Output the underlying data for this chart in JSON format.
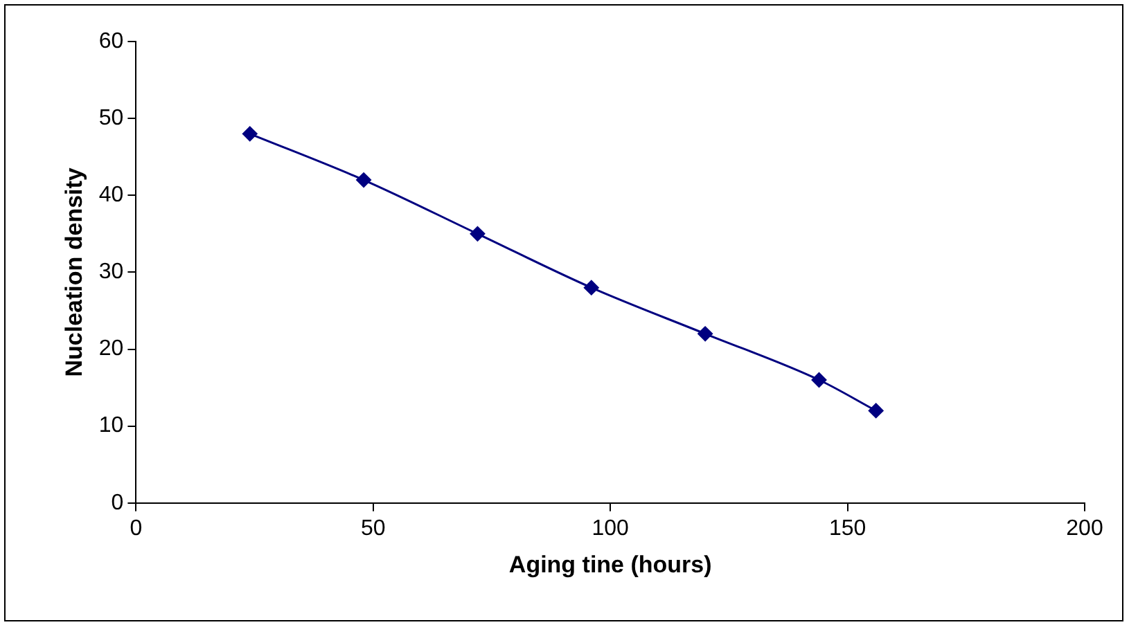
{
  "chart_data": {
    "type": "line",
    "xlabel": "Aging tine (hours)",
    "ylabel": "Nucleation density",
    "x": [
      24,
      48,
      72,
      96,
      120,
      144,
      156
    ],
    "series": [
      {
        "color": "#000080",
        "values": [
          48,
          42,
          35,
          28,
          22,
          16,
          12
        ]
      }
    ],
    "xlim": [
      0,
      200
    ],
    "xticks": [
      0,
      50,
      100,
      150,
      200
    ],
    "ylim": [
      0,
      60
    ],
    "yticks": [
      0,
      10,
      20,
      30,
      40,
      50,
      60
    ],
    "grid": false,
    "legend": false,
    "marker": "diamond",
    "line_style": "solid"
  }
}
